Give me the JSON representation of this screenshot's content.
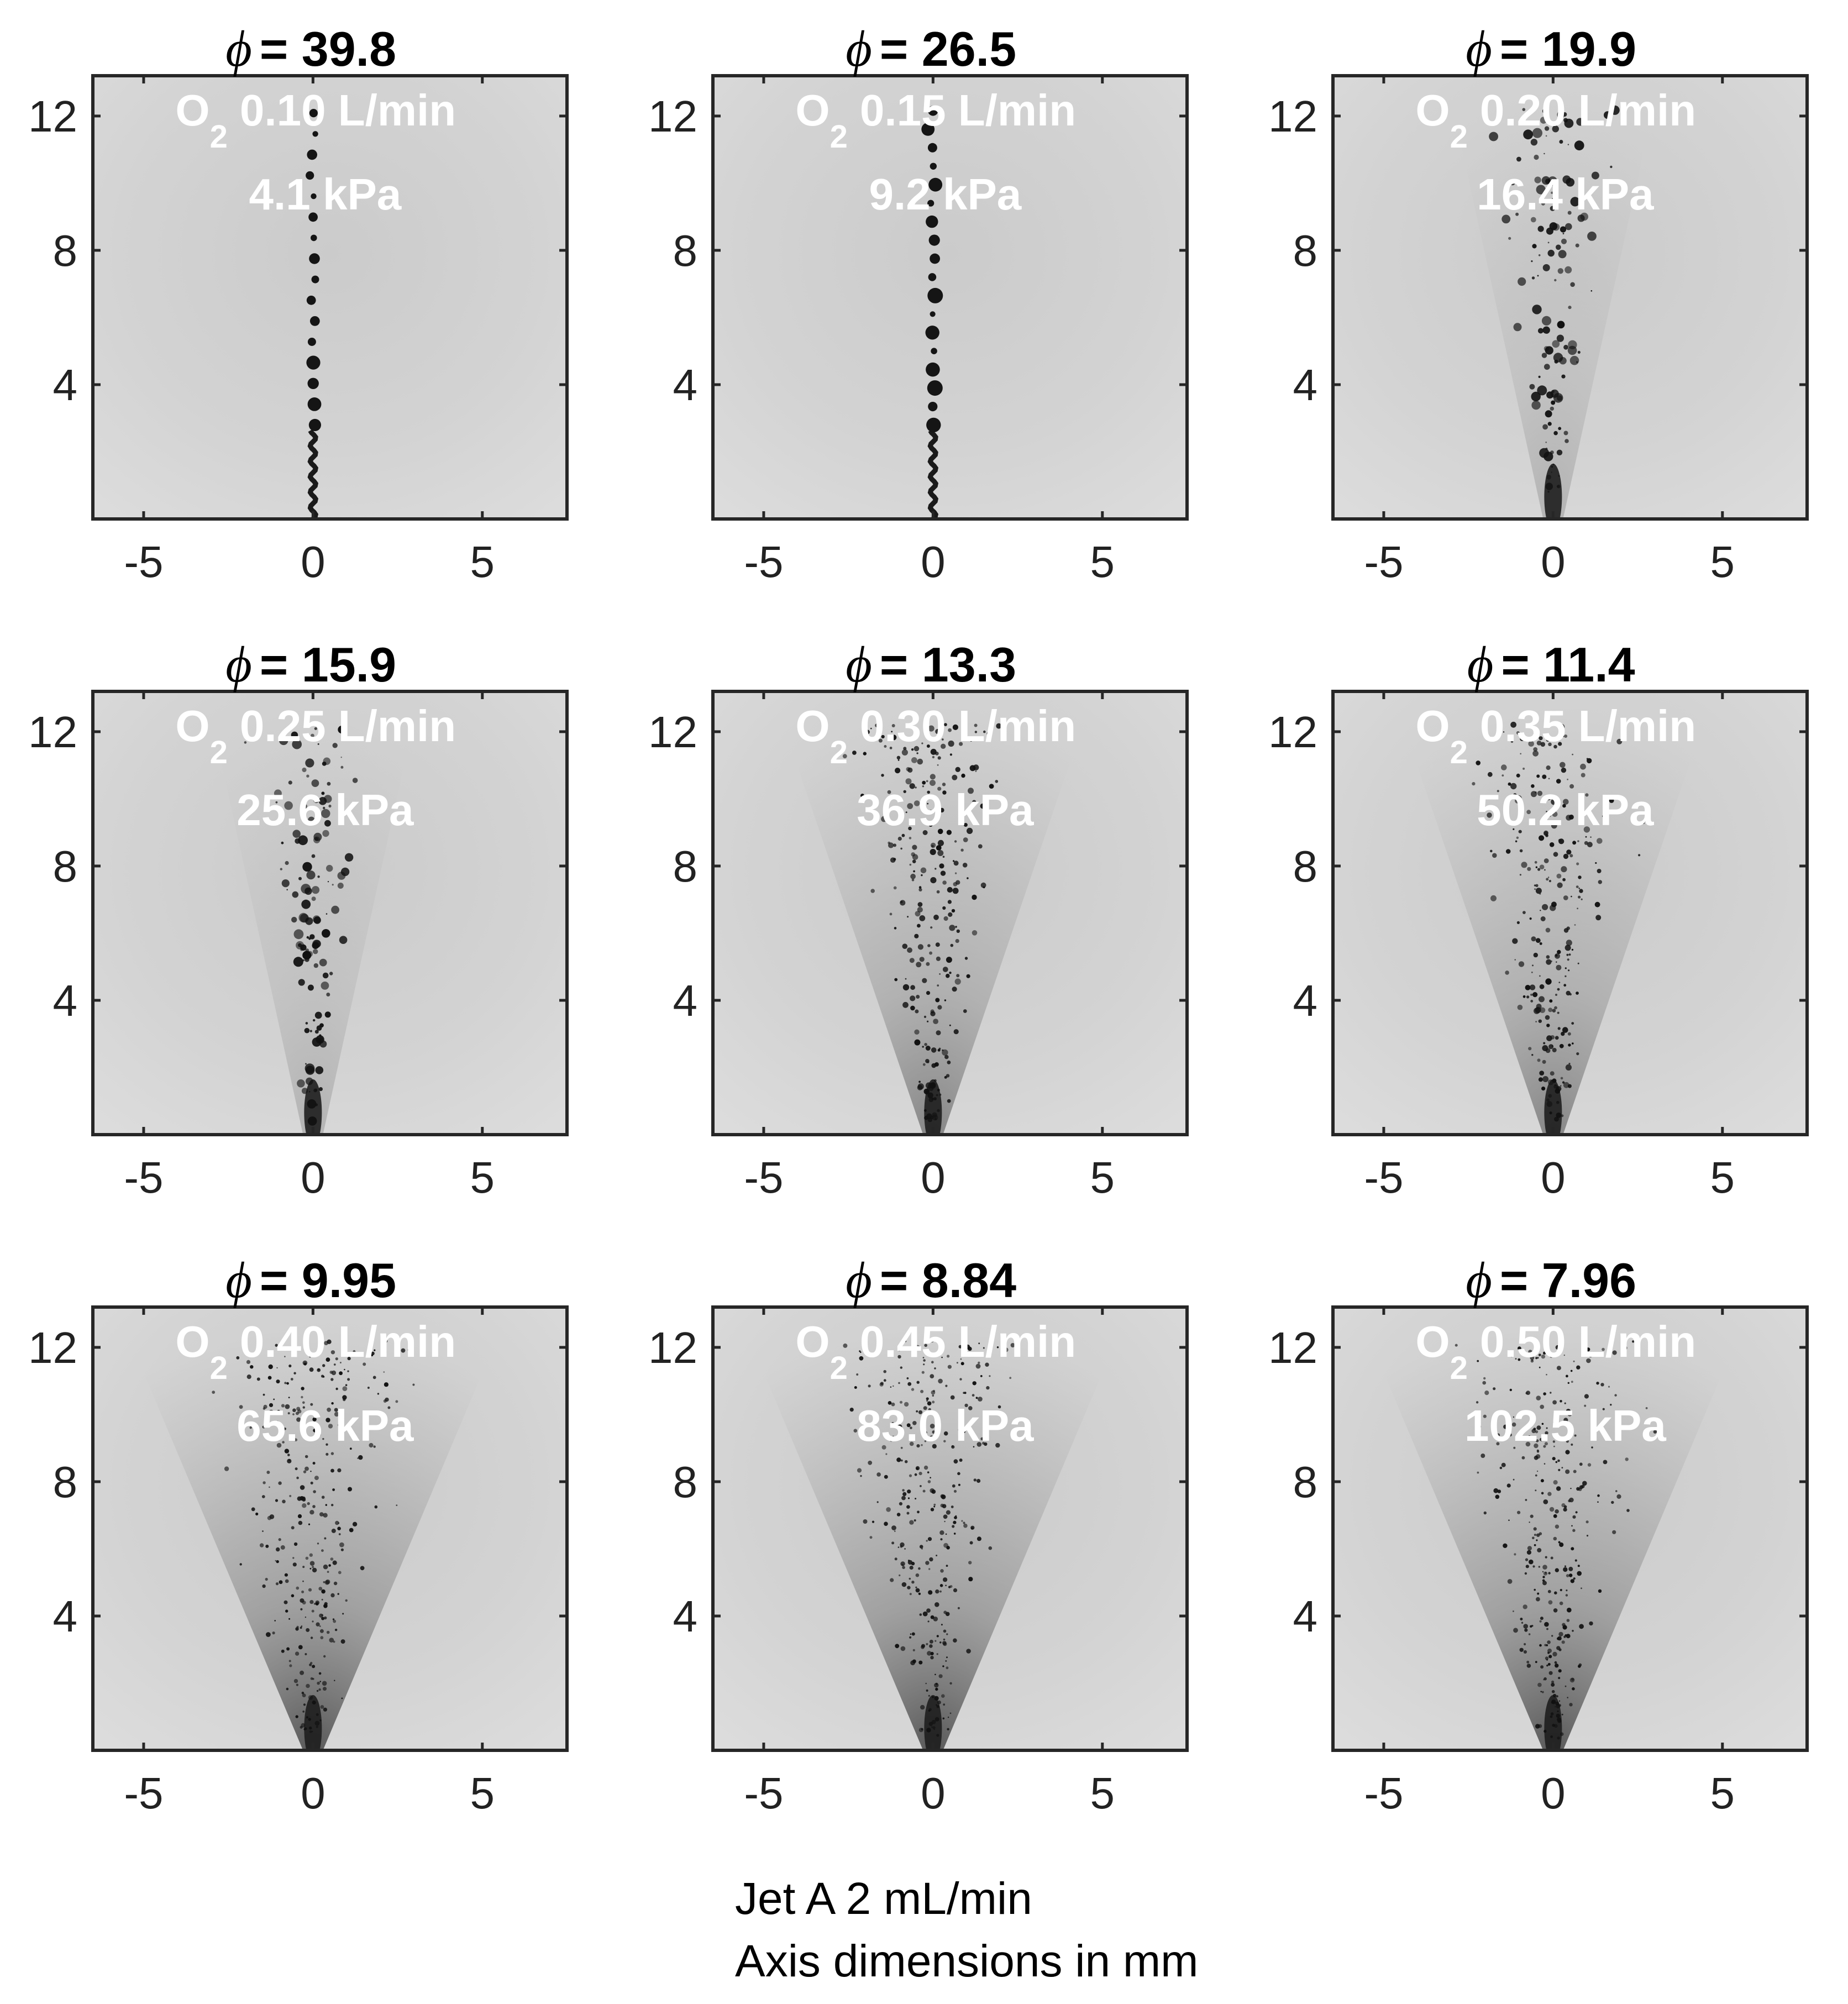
{
  "figure": {
    "caption_lines": [
      "Jet A 2 mL/min",
      "Axis dimensions in mm"
    ]
  },
  "axes": {
    "x_ticks": [
      "-5",
      "0",
      "5"
    ],
    "y_ticks": [
      "12",
      "8",
      "4"
    ],
    "xlim": [
      -6.5,
      7.5
    ],
    "ylim": [
      0,
      13.2
    ]
  },
  "colors": {
    "frame": "#262626",
    "background_gray": "#cdcdcd",
    "droplet": "#111111",
    "overlay_text": "#ffffff"
  },
  "panels": [
    {
      "phi_symbol": "ϕ",
      "phi_value": "= 39.8",
      "gas": "O",
      "gas_sub": "2",
      "flow": "0.10 L/min",
      "pressure": "4.1 kPa",
      "spray_regime": "droplet-chain"
    },
    {
      "phi_symbol": "ϕ",
      "phi_value": "= 26.5",
      "gas": "O",
      "gas_sub": "2",
      "flow": "0.15 L/min",
      "pressure": "9.2 kPa",
      "spray_regime": "droplet-chain"
    },
    {
      "phi_symbol": "ϕ",
      "phi_value": "= 19.9",
      "gas": "O",
      "gas_sub": "2",
      "flow": "0.20 L/min",
      "pressure": "16.4 kPa",
      "spray_regime": "scattered-droplets"
    },
    {
      "phi_symbol": "ϕ",
      "phi_value": "= 15.9",
      "gas": "O",
      "gas_sub": "2",
      "flow": "0.25 L/min",
      "pressure": "25.6 kPa",
      "spray_regime": "scattered-droplets"
    },
    {
      "phi_symbol": "ϕ",
      "phi_value": "= 13.3",
      "gas": "O",
      "gas_sub": "2",
      "flow": "0.30 L/min",
      "pressure": "36.9 kPa",
      "spray_regime": "fine-spray"
    },
    {
      "phi_symbol": "ϕ",
      "phi_value": "= 11.4",
      "gas": "O",
      "gas_sub": "2",
      "flow": "0.35 L/min",
      "pressure": "50.2 kPa",
      "spray_regime": "fine-spray"
    },
    {
      "phi_symbol": "ϕ",
      "phi_value": "= 9.95",
      "gas": "O",
      "gas_sub": "2",
      "flow": "0.40 L/min",
      "pressure": "65.6 kPa",
      "spray_regime": "mist-cone"
    },
    {
      "phi_symbol": "ϕ",
      "phi_value": "= 8.84",
      "gas": "O",
      "gas_sub": "2",
      "flow": "0.45 L/min",
      "pressure": "83.0 kPa",
      "spray_regime": "mist-cone"
    },
    {
      "phi_symbol": "ϕ",
      "phi_value": "= 7.96",
      "gas": "O",
      "gas_sub": "2",
      "flow": "0.50 L/min",
      "pressure": "102.5 kPa",
      "spray_regime": "mist-cone"
    }
  ]
}
